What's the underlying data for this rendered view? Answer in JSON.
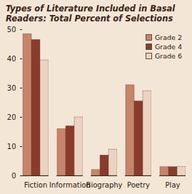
{
  "chart_data": {
    "type": "bar",
    "title": "Types of Literature Included in Basal Readers: Total Percent of Selections",
    "categories": [
      "Fiction",
      "Information",
      "Biography",
      "Poetry",
      "Play"
    ],
    "series": [
      {
        "name": "Grade 2",
        "color": "#c7846a",
        "values": [
          48.5,
          16,
          2,
          31,
          3
        ]
      },
      {
        "name": "Grade 4",
        "color": "#8a3b2c",
        "values": [
          46.5,
          17,
          7,
          25.5,
          3
        ]
      },
      {
        "name": "Grade 6",
        "color": "#ecd3c1",
        "values": [
          39.5,
          20,
          9,
          29,
          3
        ]
      }
    ],
    "ylim": [
      0,
      50
    ],
    "yticks": [
      0,
      10,
      20,
      30,
      40,
      50
    ],
    "grid": false,
    "legend": "top-right"
  }
}
